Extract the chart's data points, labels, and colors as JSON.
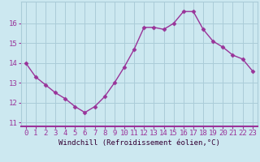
{
  "x": [
    0,
    1,
    2,
    3,
    4,
    5,
    6,
    7,
    8,
    9,
    10,
    11,
    12,
    13,
    14,
    15,
    16,
    17,
    18,
    19,
    20,
    21,
    22,
    23
  ],
  "y": [
    14.0,
    13.3,
    12.9,
    12.5,
    12.2,
    11.8,
    11.5,
    11.8,
    12.3,
    13.0,
    13.8,
    14.7,
    15.8,
    15.8,
    15.7,
    16.0,
    16.6,
    16.6,
    15.7,
    15.1,
    14.8,
    14.4,
    14.2,
    13.6
  ],
  "line_color": "#993399",
  "marker": "D",
  "marker_size": 2.5,
  "linewidth": 1.0,
  "xlabel": "Windchill (Refroidissement éolien,°C)",
  "xlabel_fontsize": 6.5,
  "background_color": "#cce8f0",
  "grid_color": "#aaccd8",
  "spine_color": "#993399",
  "tick_label_fontsize": 6.5,
  "ylim": [
    10.8,
    17.1
  ],
  "xlim": [
    -0.5,
    23.5
  ],
  "yticks": [
    11,
    12,
    13,
    14,
    15,
    16
  ],
  "xticks": [
    0,
    1,
    2,
    3,
    4,
    5,
    6,
    7,
    8,
    9,
    10,
    11,
    12,
    13,
    14,
    15,
    16,
    17,
    18,
    19,
    20,
    21,
    22,
    23
  ]
}
